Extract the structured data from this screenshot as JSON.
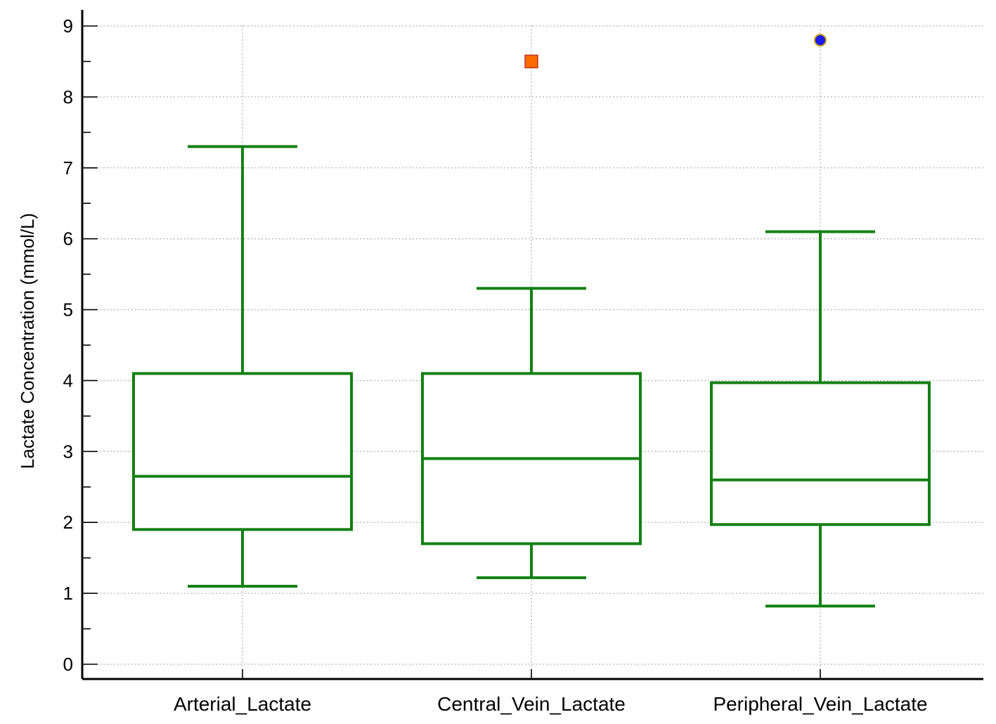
{
  "chart_data": {
    "type": "box",
    "ylabel": "Lactate Concentration (mmol/L)",
    "xlabel": "",
    "ylim": [
      0,
      9
    ],
    "yticks": [
      "0",
      "1",
      "2",
      "3",
      "4",
      "5",
      "6",
      "7",
      "8",
      "9"
    ],
    "grid": true,
    "categories": [
      "Arterial_Lactate",
      "Central_Vein_Lactate",
      "Peripheral_Vein_Lactate"
    ],
    "series": [
      {
        "category": "Arterial_Lactate",
        "min": 1.1,
        "q1": 1.9,
        "median": 2.65,
        "q3": 4.1,
        "max": 7.3,
        "outliers": []
      },
      {
        "category": "Central_Vein_Lactate",
        "min": 1.22,
        "q1": 1.7,
        "median": 2.9,
        "q3": 4.1,
        "max": 5.3,
        "outliers": [
          {
            "value": 8.5,
            "marker": "square"
          }
        ]
      },
      {
        "category": "Peripheral_Vein_Lactate",
        "min": 0.82,
        "q1": 1.97,
        "median": 2.6,
        "q3": 3.97,
        "max": 6.1,
        "outliers": [
          {
            "value": 8.8,
            "marker": "circle"
          }
        ]
      }
    ],
    "colors": {
      "box": "#138013",
      "square_outlier_fill": "#ff6a00",
      "square_outlier_edge": "#c0392b",
      "circle_outlier_fill": "#1a1aff",
      "circle_outlier_edge": "#c8a000",
      "grid": "#b5b5b5"
    }
  }
}
